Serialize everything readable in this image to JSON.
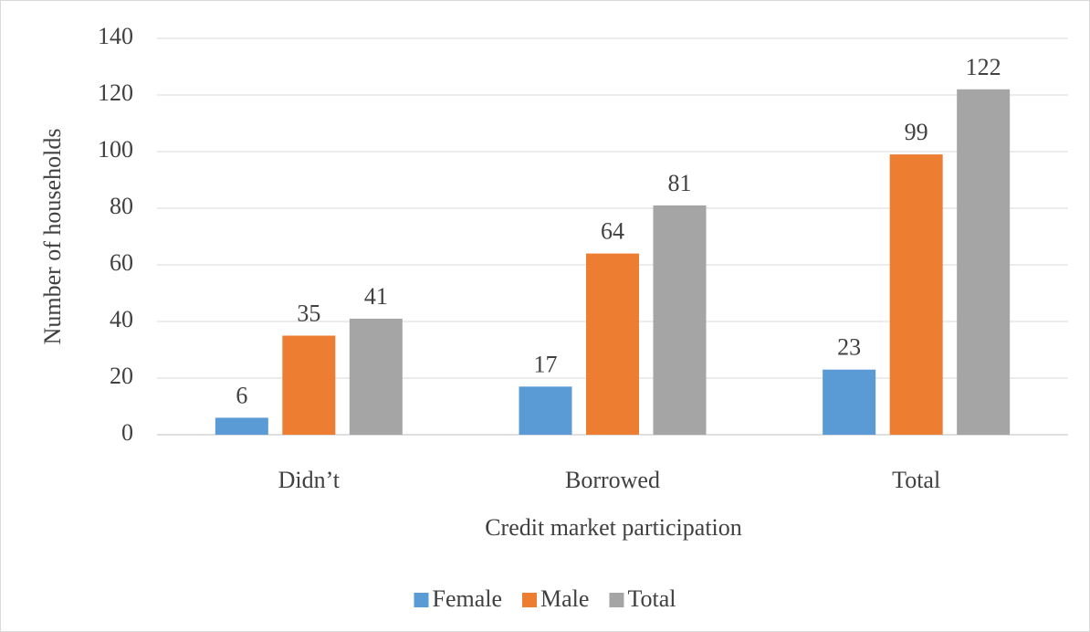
{
  "chart_data": {
    "type": "bar",
    "x_label": "Credit market participation",
    "y_label": "Number of households",
    "categories": [
      "Didn’t",
      "Borrowed",
      "Total"
    ],
    "series": [
      {
        "name": "Female",
        "color": "#5b9bd5",
        "values": [
          6,
          17,
          23
        ]
      },
      {
        "name": "Male",
        "color": "#ed7d31",
        "values": [
          35,
          64,
          99
        ]
      },
      {
        "name": "Total",
        "color": "#a5a5a5",
        "values": [
          41,
          81,
          122
        ]
      }
    ],
    "ylim": [
      0,
      140
    ],
    "yticks": [
      0,
      20,
      40,
      60,
      80,
      100,
      120,
      140
    ],
    "grid": true,
    "legend": "bottom"
  }
}
